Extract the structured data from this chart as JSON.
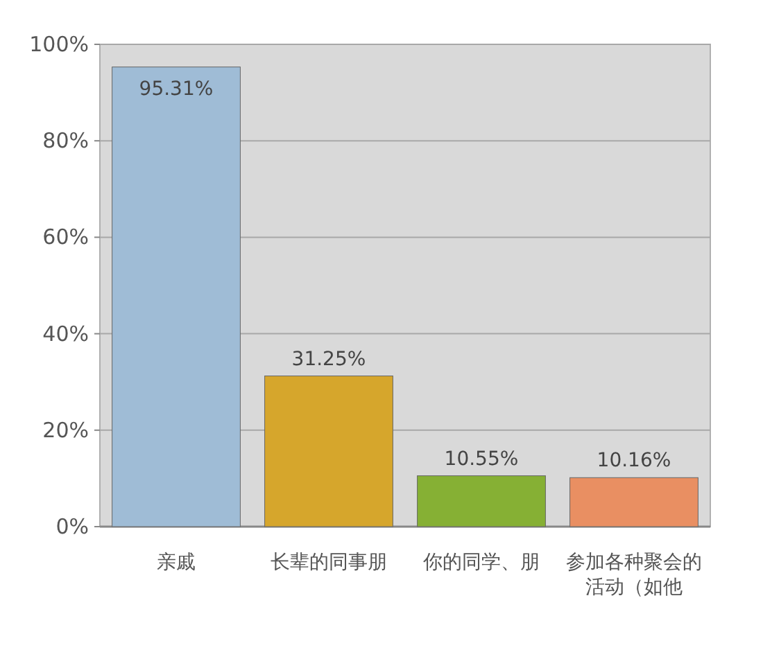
{
  "chart_data": {
    "type": "bar",
    "categories": [
      "亲戚",
      "长辈的同事朋",
      "你的同学、朋",
      "参加各种聚会的活动（如他"
    ],
    "values": [
      95.31,
      31.25,
      10.55,
      10.16
    ],
    "colors": [
      "#9fbcd6",
      "#d6a62c",
      "#86b034",
      "#e98f62"
    ],
    "ylim": [
      0,
      100
    ],
    "yticks": [
      {
        "value": 0,
        "label": "0%"
      },
      {
        "value": 20,
        "label": "20%"
      },
      {
        "value": 40,
        "label": "40%"
      },
      {
        "value": 60,
        "label": "60%"
      },
      {
        "value": 80,
        "label": "80%"
      },
      {
        "value": 100,
        "label": "100%"
      }
    ],
    "value_labels": [
      "95.31%",
      "31.25%",
      "10.55%",
      "10.16%"
    ],
    "grid": "y"
  }
}
